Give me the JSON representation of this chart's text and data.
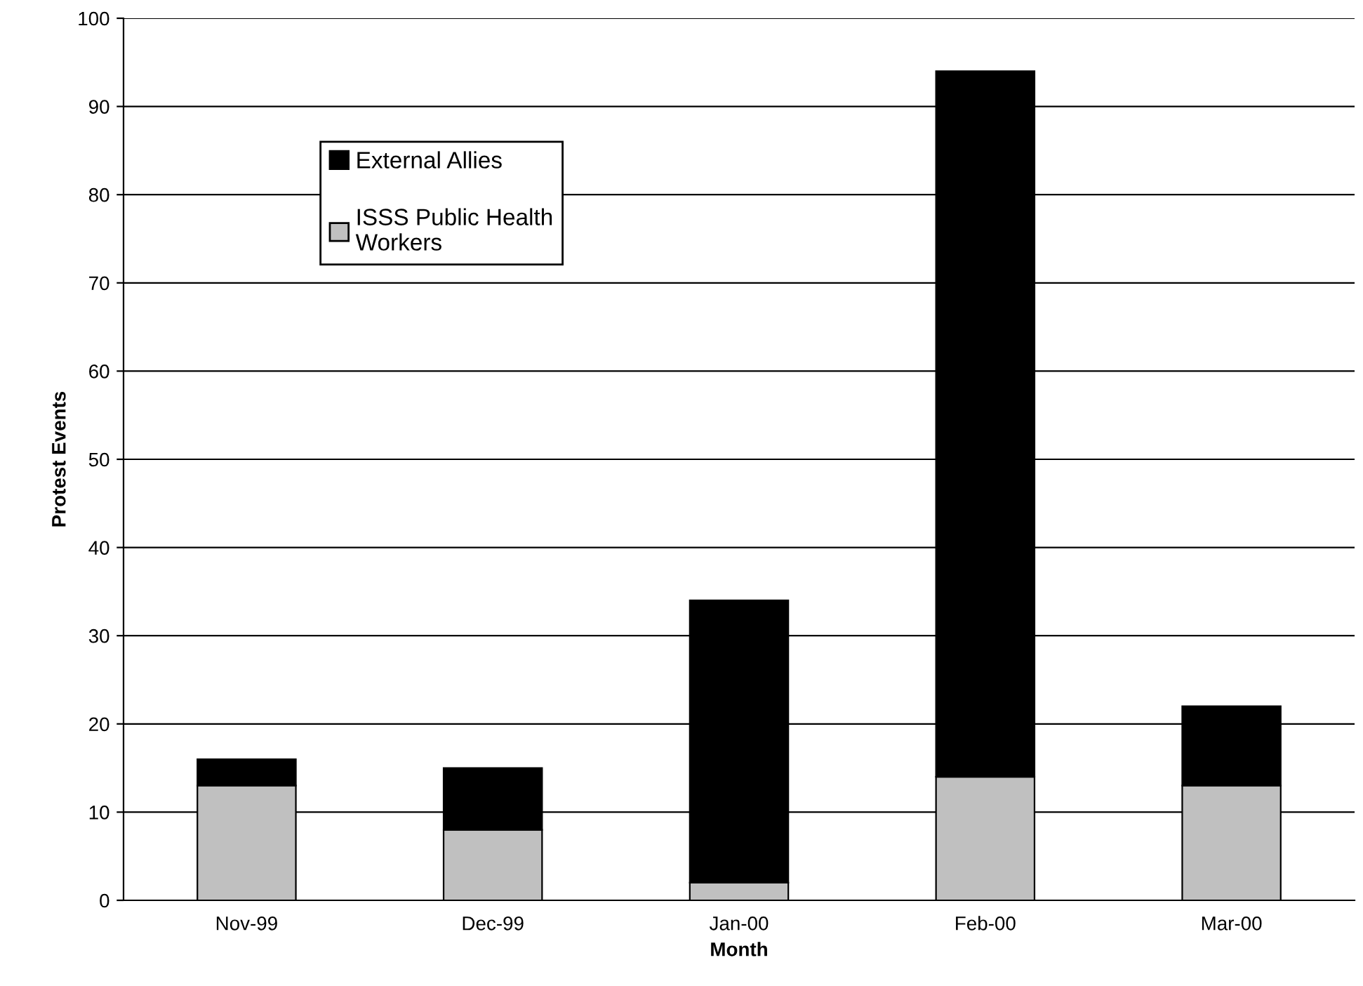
{
  "chart_data": {
    "type": "bar",
    "stacked": true,
    "xlabel": "Month",
    "ylabel": "Protest Events",
    "categories": [
      "Nov-99",
      "Dec-99",
      "Jan-00",
      "Feb-00",
      "Mar-00"
    ],
    "series": [
      {
        "name": "ISSS Public Health\nWorkers",
        "color": "#c0c0c0",
        "values": [
          13,
          8,
          2,
          14,
          13
        ]
      },
      {
        "name": "External Allies",
        "color": "#000000",
        "values": [
          3,
          7,
          32,
          80,
          9
        ]
      }
    ],
    "ylim": [
      0,
      100
    ],
    "yticks": [
      0,
      10,
      20,
      30,
      40,
      50,
      60,
      70,
      80,
      90,
      100
    ],
    "grid": "y",
    "legend": "top left"
  }
}
